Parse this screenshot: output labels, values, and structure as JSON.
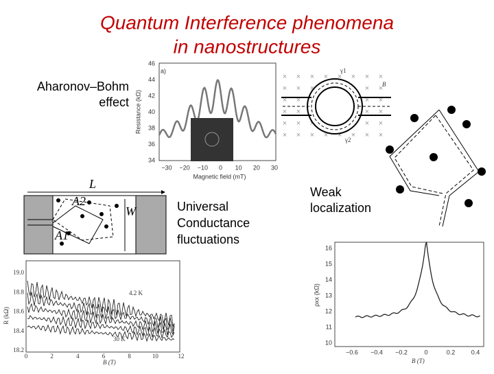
{
  "title": [
    "Quantum Interference phenomena",
    "in nanostructures"
  ],
  "labels": {
    "aharonov_bohm": [
      "Aharonov–Bohm",
      "effect"
    ],
    "ucf": [
      "Universal",
      "Conductance",
      "fluctuations"
    ],
    "weak_localization": [
      "Weak",
      "localization"
    ]
  },
  "figures": {
    "ab_plot": {
      "panel": "a)",
      "xlabel": "Magnetic field (mT)",
      "ylabel": "Resistance (kΩ)",
      "xticks": [
        "−30",
        "−20",
        "−10",
        "0",
        "10",
        "20",
        "30"
      ],
      "yticks": [
        "34",
        "36",
        "38",
        "40",
        "42",
        "44",
        "46"
      ]
    },
    "ring": {
      "labels": [
        "γ1",
        "γ2",
        "B"
      ]
    },
    "device": {
      "labels": [
        "L",
        "A2",
        "W",
        "A1"
      ]
    },
    "ucf_plot": {
      "xlabel": "B (T)",
      "ylabel": "R (kΩ)",
      "xticks": [
        "0",
        "2",
        "4",
        "6",
        "8",
        "10",
        "12"
      ],
      "yticks": [
        "18.2",
        "18.4",
        "18.6",
        "18.8",
        "19.0"
      ],
      "annotations": [
        "4.2 K",
        "30 K"
      ]
    },
    "wl_plot": {
      "xlabel": "B (T)",
      "ylabel": "ρxx (kΩ)",
      "xticks": [
        "−0.6",
        "−0.4",
        "−0.2",
        "0",
        "0.2",
        "0.4"
      ],
      "yticks": [
        "10",
        "11",
        "12",
        "13",
        "14",
        "15",
        "16"
      ]
    }
  }
}
